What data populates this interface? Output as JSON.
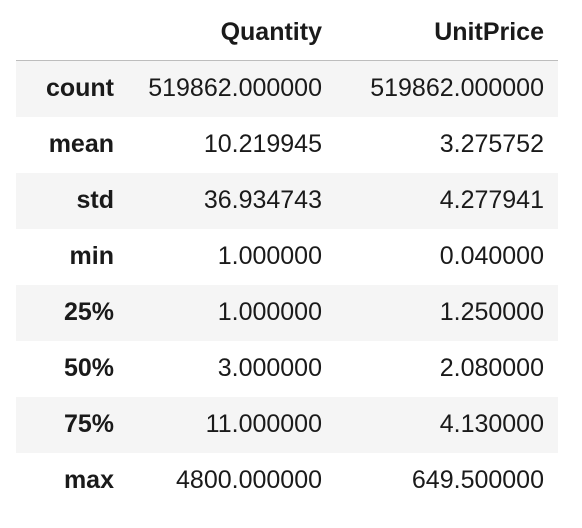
{
  "table": {
    "columns": [
      "",
      "Quantity",
      "UnitPrice"
    ],
    "rows": [
      {
        "label": "count",
        "quantity": "519862.000000",
        "unitprice": "519862.000000"
      },
      {
        "label": "mean",
        "quantity": "10.219945",
        "unitprice": "3.275752"
      },
      {
        "label": "std",
        "quantity": "36.934743",
        "unitprice": "4.277941"
      },
      {
        "label": "min",
        "quantity": "1.000000",
        "unitprice": "0.040000"
      },
      {
        "label": "25%",
        "quantity": "1.000000",
        "unitprice": "1.250000"
      },
      {
        "label": "50%",
        "quantity": "3.000000",
        "unitprice": "2.080000"
      },
      {
        "label": "75%",
        "quantity": "11.000000",
        "unitprice": "4.130000"
      },
      {
        "label": "max",
        "quantity": "4800.000000",
        "unitprice": "649.500000"
      }
    ]
  }
}
